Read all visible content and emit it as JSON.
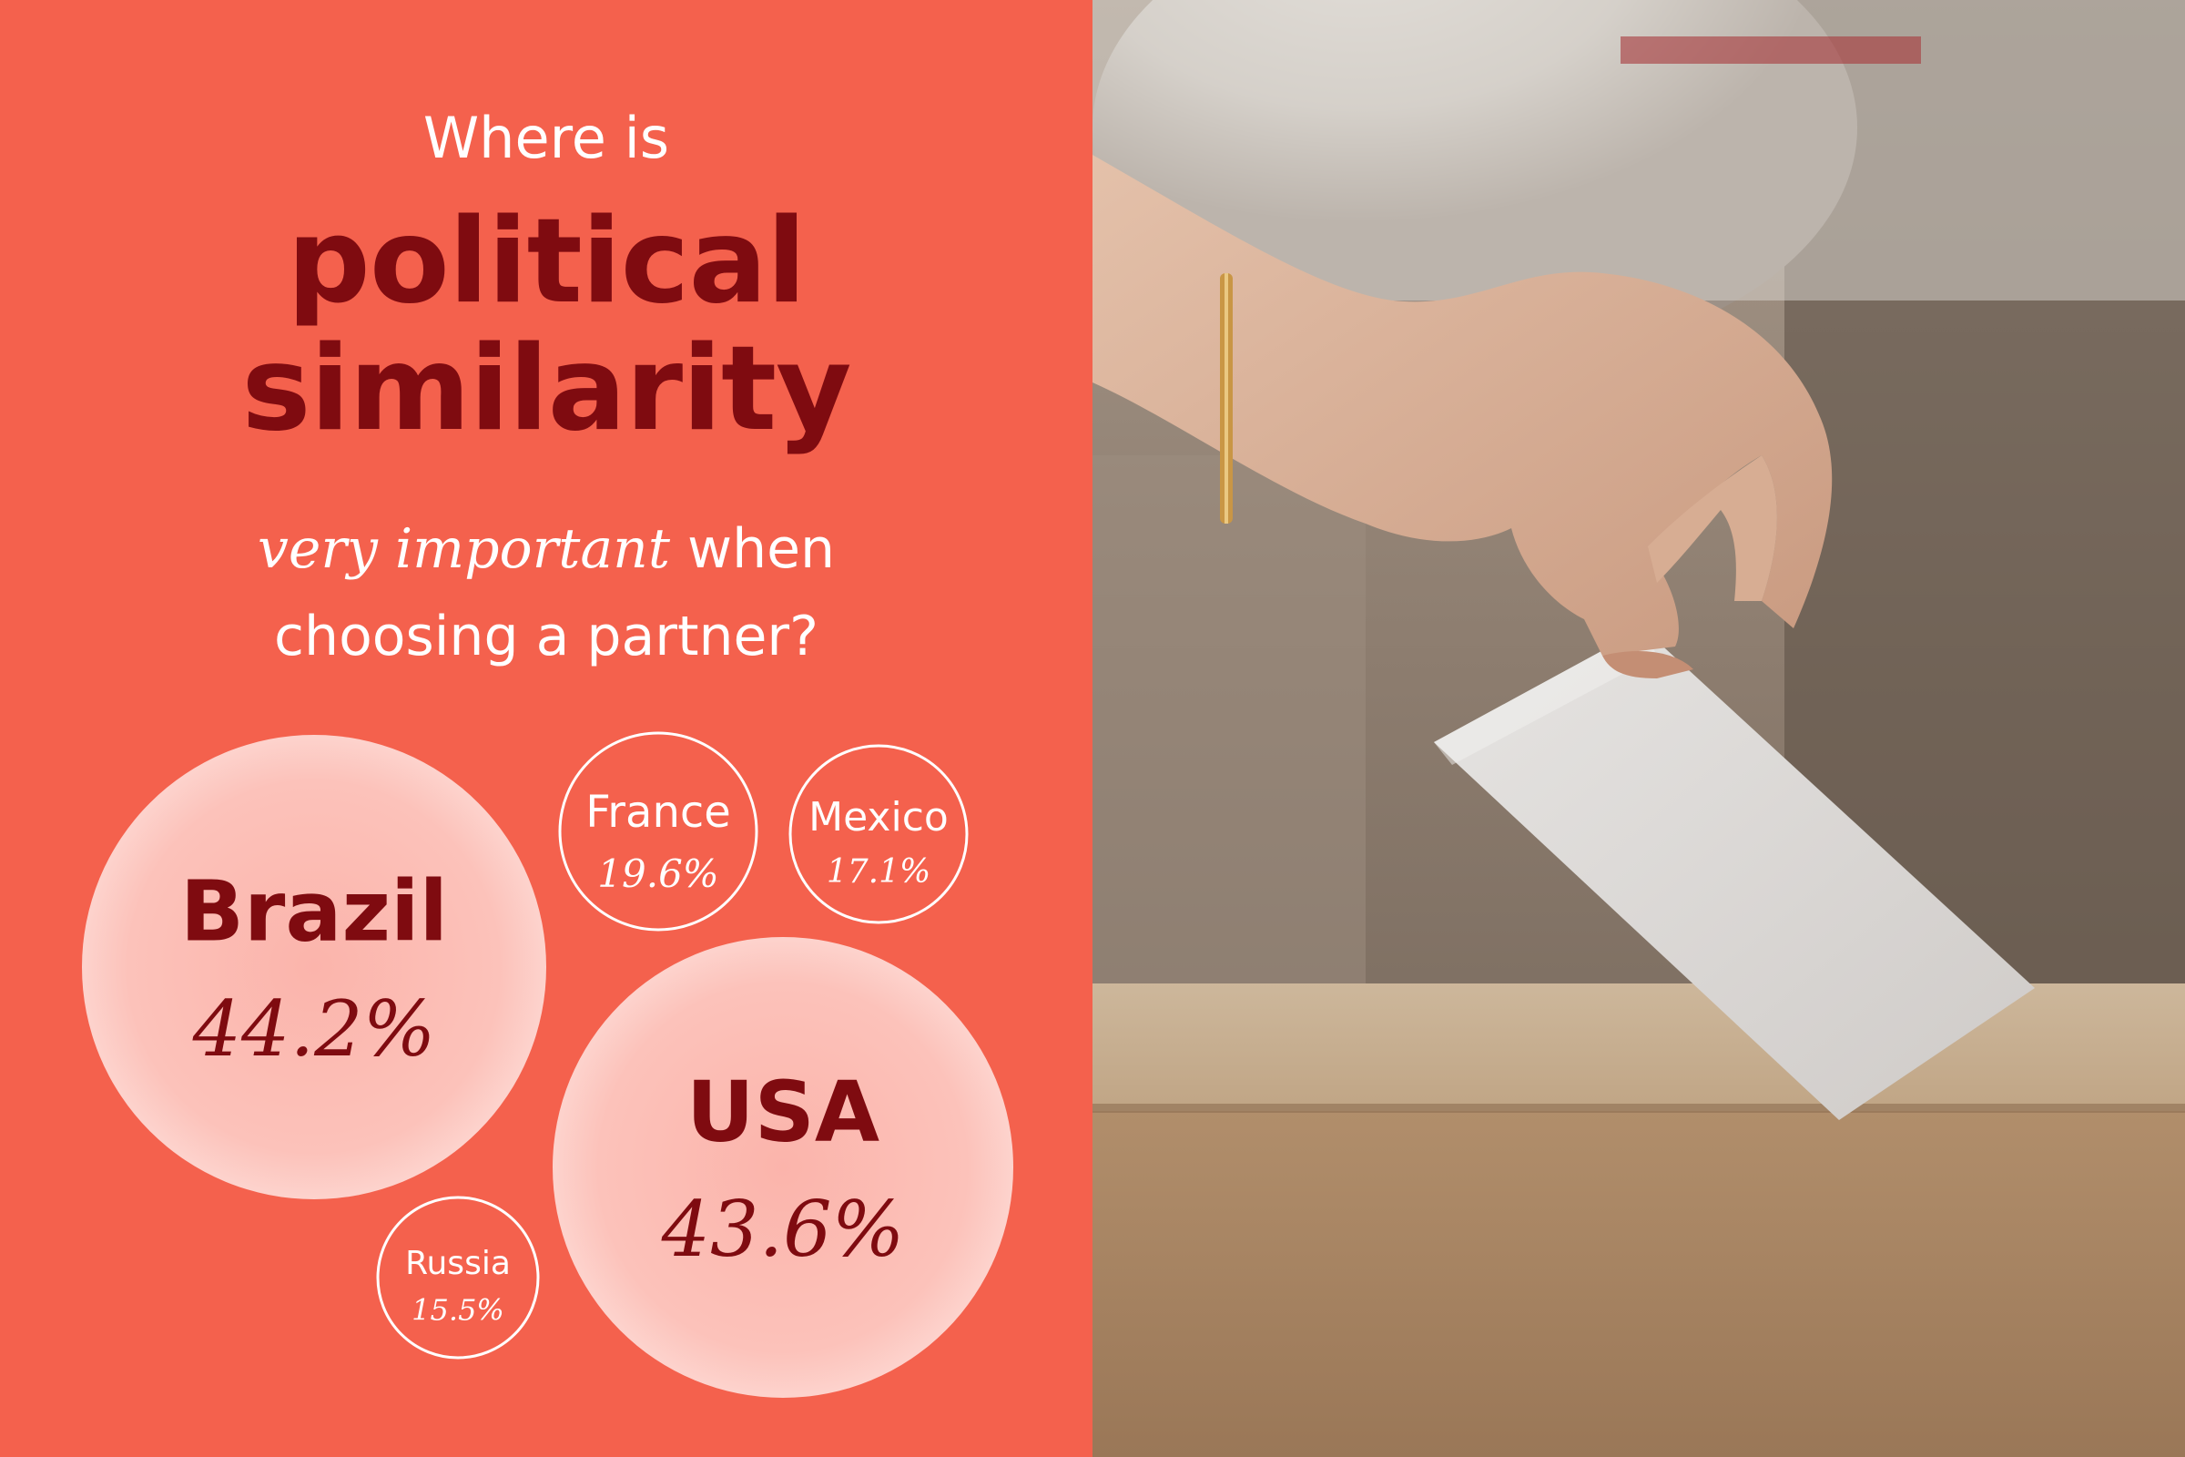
{
  "heading": {
    "line1": "Where is",
    "line2": "political",
    "line3": "similarity",
    "line4_italic": "very important",
    "line4_rest": " when",
    "line5": "choosing a partner?"
  },
  "colors": {
    "background": "#f4614d",
    "title_dark": "#7f0b10",
    "bubble_fill": "#fbb7ae",
    "outline": "#ffffff"
  },
  "chart_data": {
    "type": "bubble",
    "unit": "%",
    "series": [
      {
        "name": "Brazil",
        "value": 44.2,
        "label": "44.2%",
        "style": "filled"
      },
      {
        "name": "USA",
        "value": 43.6,
        "label": "43.6%",
        "style": "filled"
      },
      {
        "name": "France",
        "value": 19.6,
        "label": "19.6%",
        "style": "outline"
      },
      {
        "name": "Mexico",
        "value": 17.1,
        "label": "17.1%",
        "style": "outline"
      },
      {
        "name": "Russia",
        "value": 15.5,
        "label": "15.5%",
        "style": "outline"
      }
    ]
  },
  "photo": {
    "icon": "ballot-box-photo"
  }
}
